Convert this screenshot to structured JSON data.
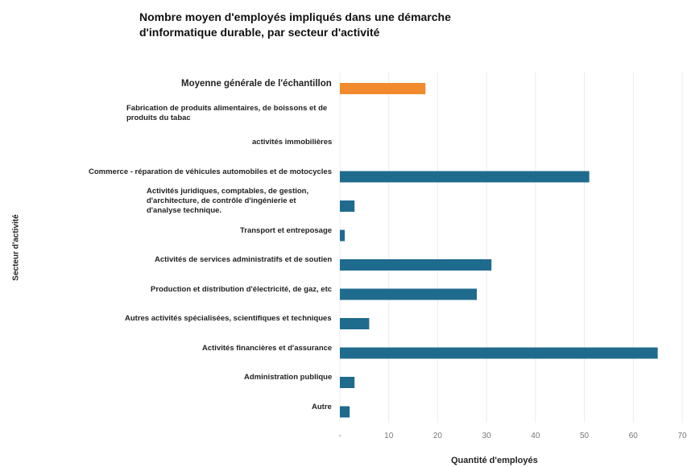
{
  "chart_data": {
    "type": "barh",
    "title": "Nombre moyen d'employés impliqués dans une démarche d'informatique durable, par secteur d'activité",
    "xlabel": "Quantité d'employés",
    "ylabel": "Secteur d'activité",
    "categories": [
      "Moyenne générale de l'échantillon",
      "Fabrication de produits alimentaires, de boissons et de produits du tabac",
      "activités immobilières",
      "Commerce - réparation de véhicules automobiles et de motocycles",
      "Activités juridiques, comptables, de gestion, d'architecture, de contrôle d'ingénierie et d'analyse technique.",
      "Transport et entreposage",
      "Activités de services administratifs et de soutien",
      "Production et distribution d'électricité, de gaz, etc",
      "Autres activités spécialisées, scientifiques et techniques",
      "Activités financières et d'assurance",
      "Administration publique",
      "Autre"
    ],
    "values": [
      17.5,
      0,
      0,
      51,
      3,
      1,
      31,
      28,
      6,
      65,
      3,
      2
    ],
    "colors": [
      "#f08a2c",
      "#1f6b8e",
      "#1f6b8e",
      "#1f6b8e",
      "#1f6b8e",
      "#1f6b8e",
      "#1f6b8e",
      "#1f6b8e",
      "#1f6b8e",
      "#1f6b8e",
      "#1f6b8e",
      "#1f6b8e"
    ],
    "xlim": [
      0,
      70
    ],
    "xticks": [
      {
        "value": 0,
        "label": "-"
      },
      10,
      20,
      30,
      40,
      50,
      60,
      70
    ],
    "grid": true
  }
}
